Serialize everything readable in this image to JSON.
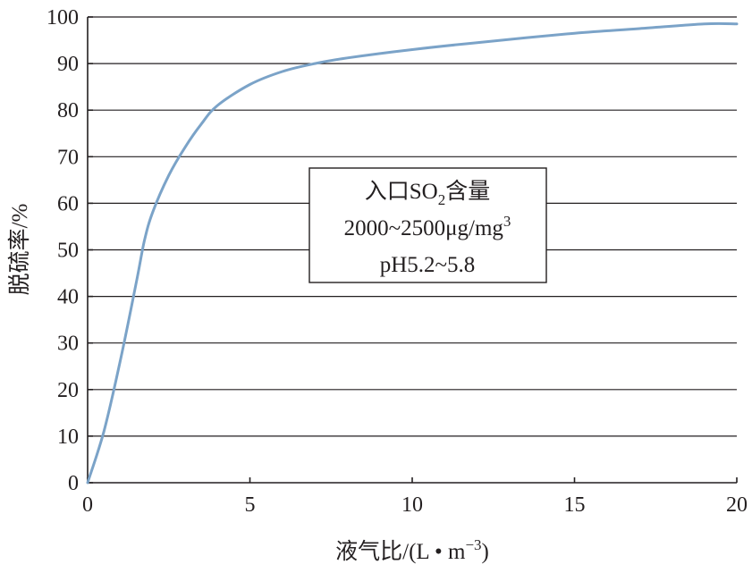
{
  "chart_data": {
    "type": "line",
    "xlabel": "液气比/(L • m",
    "xlabel_exp": "−3",
    "xlabel_tail": ")",
    "ylabel": "脱硫率/%",
    "xlim": [
      0,
      20
    ],
    "ylim": [
      0,
      100
    ],
    "x_ticks": [
      "0",
      "5",
      "10",
      "15",
      "20"
    ],
    "y_ticks": [
      "0",
      "10",
      "20",
      "30",
      "40",
      "50",
      "60",
      "70",
      "80",
      "90",
      "100"
    ],
    "grid": "horizontal",
    "line_color": "#7ba3c8",
    "series": [
      {
        "x": [
          0,
          0.5,
          1.0,
          1.5,
          1.75,
          2.0,
          2.5,
          3.0,
          3.5,
          4.0,
          5.0,
          6.0,
          7.0,
          8.0,
          10.0,
          12.0,
          15.0,
          17.0,
          19.0,
          20.0
        ],
        "values": [
          0,
          11,
          26,
          43,
          52,
          58,
          66,
          72,
          77,
          81,
          85.5,
          88.3,
          90,
          91.2,
          93,
          94.5,
          96.5,
          97.5,
          98.5,
          98.5
        ]
      }
    ],
    "annotation": {
      "line1": "入口SO",
      "line1_sub": "2",
      "line1_tail": "含量",
      "line2": "2000~2500μg/mg",
      "line2_sup": "3",
      "line3": "pH5.2~5.8"
    }
  }
}
